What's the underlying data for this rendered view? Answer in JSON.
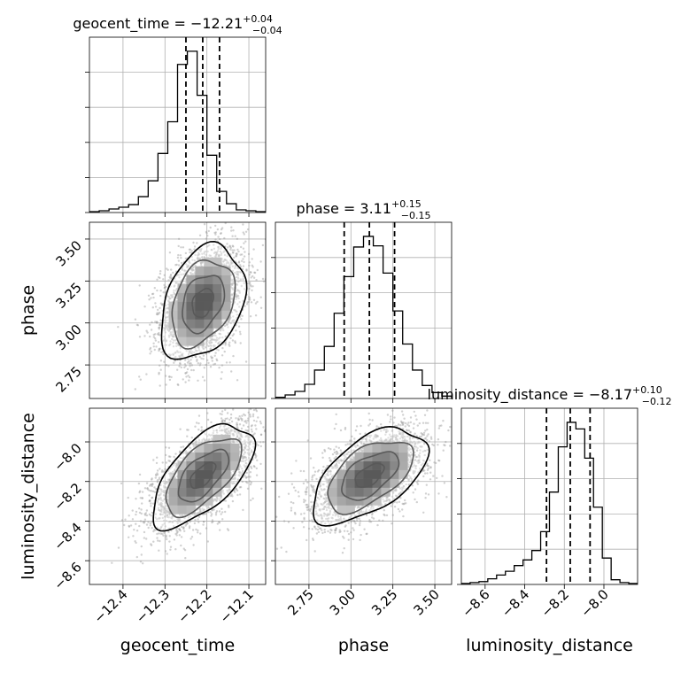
{
  "chart_data": {
    "type": "corner",
    "parameters": [
      "geocent_time",
      "phase",
      "luminosity_distance"
    ],
    "titles": [
      {
        "name": "geocent_time",
        "median": "−12.21",
        "plus": "+0.04",
        "minus": "−0.04"
      },
      {
        "name": "phase",
        "median": "3.11",
        "plus": "+0.15",
        "minus": "−0.15"
      },
      {
        "name": "luminosity_distance",
        "median": "−8.17",
        "plus": "+0.10",
        "minus": "−0.12"
      }
    ],
    "ranges": {
      "geocent_time": [
        -12.48,
        -12.06
      ],
      "phase": [
        2.55,
        3.6
      ],
      "luminosity_distance": [
        -8.72,
        -7.83
      ]
    },
    "ticks": {
      "geocent_time": {
        "values": [
          -12.4,
          -12.3,
          -12.2,
          -12.1
        ],
        "labels": [
          "−12.4",
          "−12.3",
          "−12.2",
          "−12.1"
        ]
      },
      "phase": {
        "values": [
          2.75,
          3.0,
          3.25,
          3.5
        ],
        "labels": [
          "2.75",
          "3.00",
          "3.25",
          "3.50"
        ]
      },
      "luminosity_distance": {
        "values": [
          -8.6,
          -8.4,
          -8.2,
          -8.0
        ],
        "labels": [
          "−8.6",
          "−8.4",
          "−8.2",
          "−8.0"
        ]
      }
    },
    "axis_labels": {
      "x": [
        "geocent_time",
        "phase",
        "luminosity_distance"
      ],
      "y": [
        "phase",
        "luminosity_distance"
      ]
    },
    "histograms": [
      {
        "param": "geocent_time",
        "quantiles": [
          -12.25,
          -12.21,
          -12.17
        ],
        "counts": [
          1,
          2,
          4,
          6,
          9,
          18,
          36,
          67,
          103,
          168,
          183,
          133,
          65,
          24,
          10,
          3,
          2,
          1
        ]
      },
      {
        "param": "phase",
        "quantiles": [
          2.96,
          3.11,
          3.26
        ],
        "counts": [
          1,
          3,
          6,
          12,
          24,
          44,
          72,
          103,
          128,
          137,
          129,
          106,
          74,
          46,
          24,
          11,
          5,
          2
        ]
      },
      {
        "param": "luminosity_distance",
        "quantiles": [
          -8.29,
          -8.17,
          -8.07
        ],
        "counts": [
          1,
          2,
          3,
          6,
          10,
          14,
          20,
          26,
          36,
          56,
          98,
          146,
          172,
          165,
          134,
          82,
          28,
          5,
          2,
          1
        ]
      }
    ],
    "pairs": [
      {
        "x": "geocent_time",
        "y": "phase",
        "center": [
          -12.21,
          3.12
        ],
        "sd": [
          0.05,
          0.17
        ],
        "corr": 0.32,
        "n_samples": 3000
      },
      {
        "x": "geocent_time",
        "y": "luminosity_distance",
        "center": [
          -12.21,
          -8.17
        ],
        "sd": [
          0.06,
          0.13
        ],
        "corr": 0.62,
        "n_samples": 3000
      },
      {
        "x": "phase",
        "y": "luminosity_distance",
        "center": [
          3.11,
          -8.17
        ],
        "sd": [
          0.17,
          0.12
        ],
        "corr": 0.55,
        "n_samples": 3000
      }
    ],
    "grid": true
  }
}
